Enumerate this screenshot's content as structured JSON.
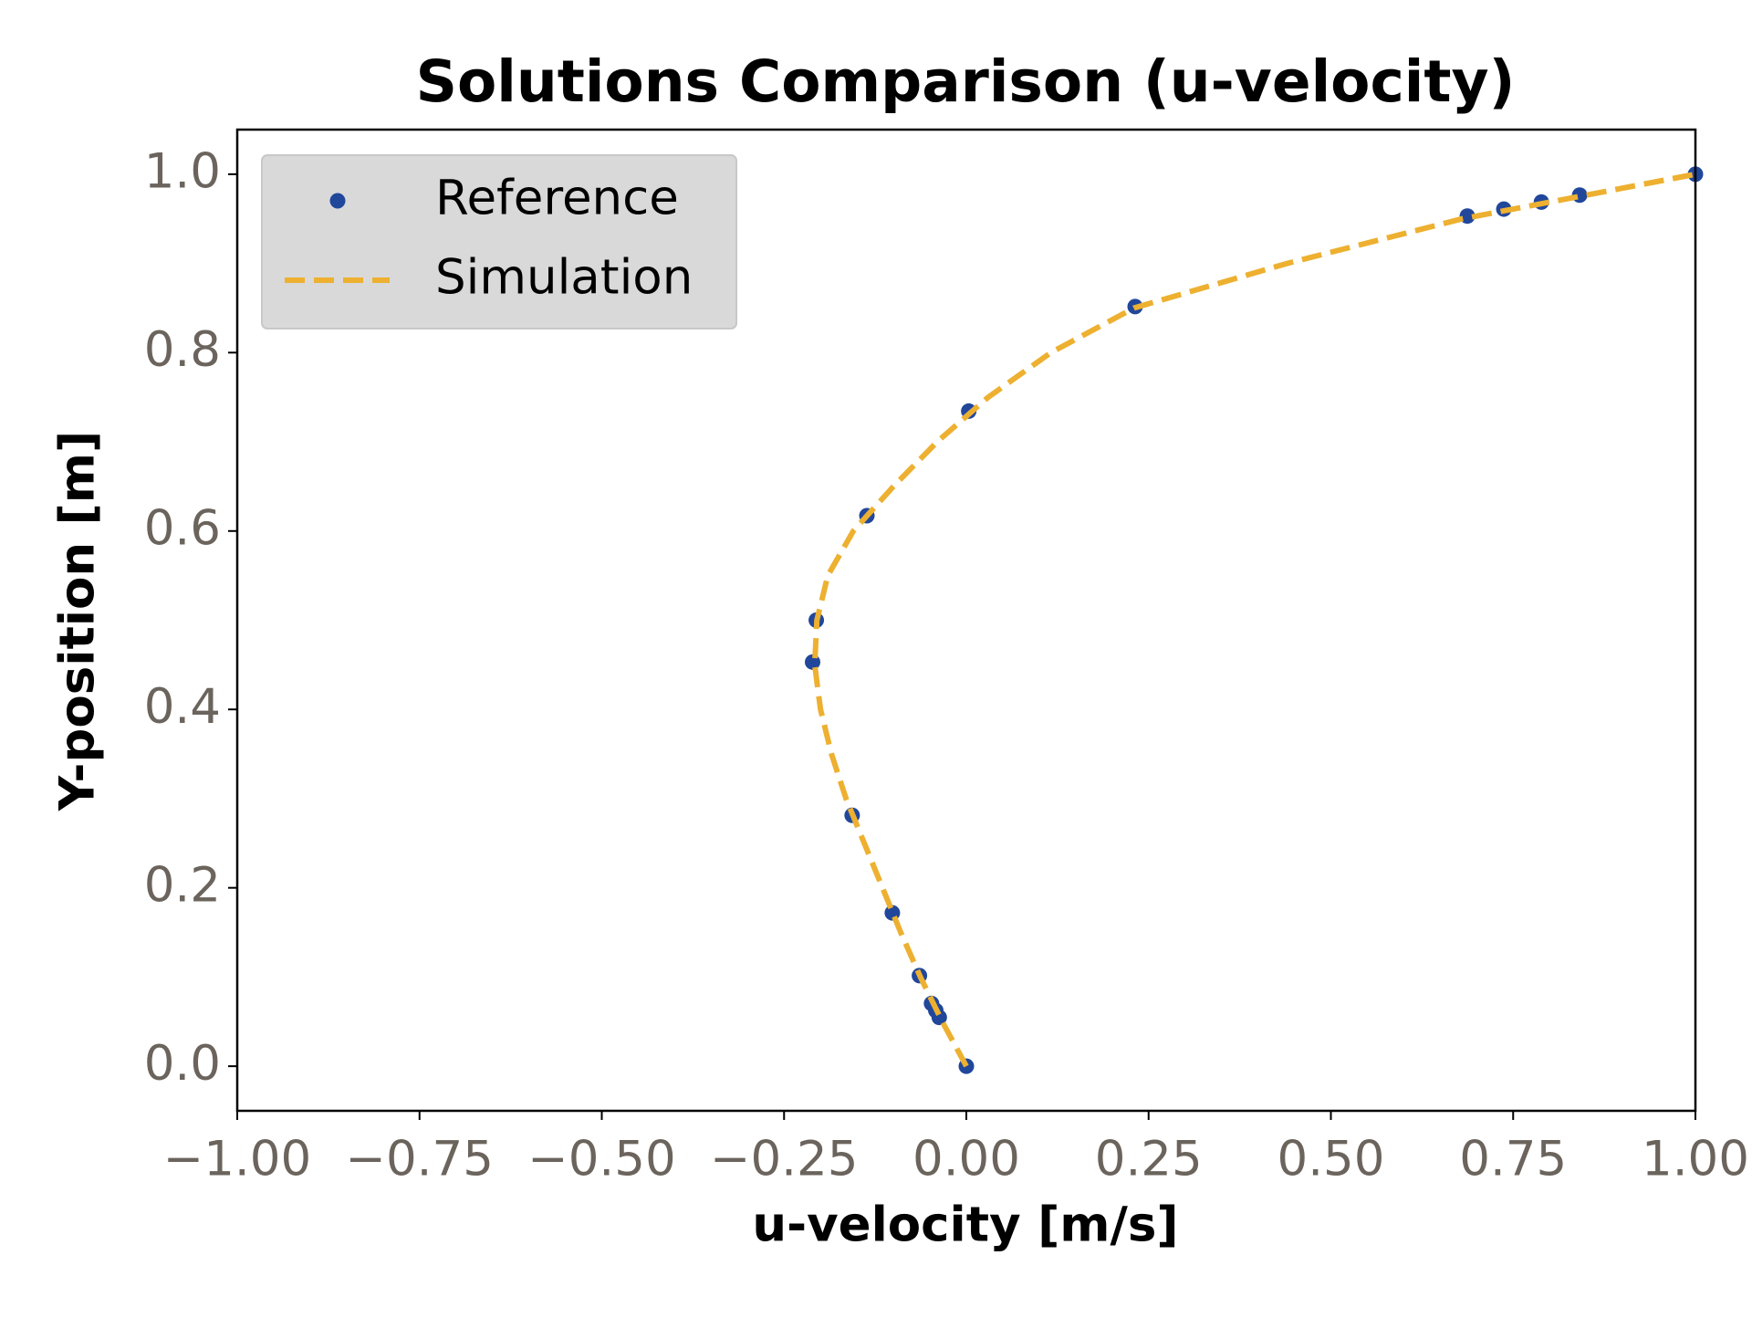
{
  "chart_data": {
    "type": "line",
    "title": "Solutions Comparison (u-velocity)",
    "x_label": "u-velocity [m/s]",
    "y_label": "Y-position [m]",
    "xlim": [
      -1.0,
      1.0
    ],
    "ylim": [
      -0.05,
      1.05
    ],
    "xticks": [
      {
        "value": -1.0,
        "label": "−1.00"
      },
      {
        "value": -0.75,
        "label": "−0.75"
      },
      {
        "value": -0.5,
        "label": "−0.50"
      },
      {
        "value": -0.25,
        "label": "−0.25"
      },
      {
        "value": 0,
        "label": "0.00"
      },
      {
        "value": 0.25,
        "label": "0.25"
      },
      {
        "value": 0.5,
        "label": "0.50"
      },
      {
        "value": 0.75,
        "label": "0.75"
      },
      {
        "value": 1.0,
        "label": "1.00"
      }
    ],
    "yticks": [
      {
        "value": 0,
        "label": "0.0"
      },
      {
        "value": 0.2,
        "label": "0.2"
      },
      {
        "value": 0.4,
        "label": "0.4"
      },
      {
        "value": 0.6,
        "label": "0.6"
      },
      {
        "value": 0.8,
        "label": "0.8"
      },
      {
        "value": 1.0,
        "label": "1.0"
      }
    ],
    "legend": "upper left",
    "series": [
      {
        "name": "Reference",
        "color": "#21479b",
        "style": "markers",
        "x": [
          0,
          -0.03717,
          -0.04192,
          -0.04775,
          -0.06434,
          -0.1015,
          -0.15662,
          -0.2109,
          -0.20581,
          -0.13641,
          0.00332,
          0.23151,
          0.68717,
          0.73722,
          0.78871,
          0.84123,
          1.0
        ],
        "y": [
          0,
          0.0547,
          0.0625,
          0.0703,
          0.1016,
          0.1719,
          0.2813,
          0.4531,
          0.5,
          0.6172,
          0.7344,
          0.8516,
          0.9531,
          0.9609,
          0.9688,
          0.9766,
          1.0
        ]
      },
      {
        "name": "Simulation",
        "color": "#edb030",
        "style": "dashed",
        "x": [
          0,
          -0.033,
          -0.063,
          -0.09,
          -0.115,
          -0.14,
          -0.165,
          -0.185,
          -0.2,
          -0.208,
          -0.205,
          -0.19,
          -0.155,
          -0.1,
          -0.04,
          0.03,
          0.116,
          0.23,
          0.44,
          0.68,
          1.0
        ],
        "y": [
          0,
          0.05,
          0.1,
          0.15,
          0.2,
          0.25,
          0.3,
          0.35,
          0.4,
          0.45,
          0.5,
          0.55,
          0.6,
          0.65,
          0.7,
          0.75,
          0.8,
          0.85,
          0.9,
          0.95,
          1.0
        ]
      }
    ]
  }
}
